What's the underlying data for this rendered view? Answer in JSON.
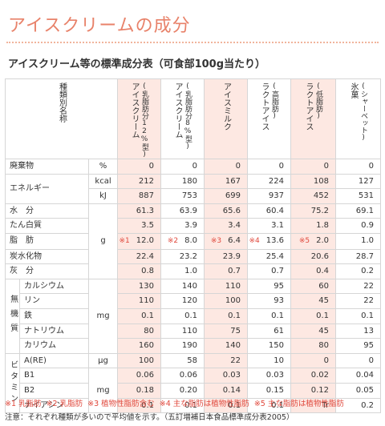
{
  "page_title": "アイスクリームの成分",
  "table_title": "アイスクリーム等の標準成分表（可食部100g当たり）",
  "header": {
    "corner": "種類別名称",
    "columns": [
      {
        "sub": "(乳脂肪分12%型)",
        "name": "アイスクリーム"
      },
      {
        "sub": "(乳脂肪分8%型)",
        "name": "アイスクリーム"
      },
      {
        "sub": "",
        "name": "アイスミルク"
      },
      {
        "sub": "(高脂肪)",
        "name": "ラクトアイス"
      },
      {
        "sub": "(低脂肪)",
        "name": "ラクトアイス"
      },
      {
        "sub": "(シャーベット)",
        "name": "氷菓"
      }
    ]
  },
  "groups": {
    "minerals": "無機質",
    "vitamins": "ビタミン"
  },
  "rows": {
    "haiki": {
      "label": "廃棄物",
      "unit": "%",
      "values": [
        "0",
        "0",
        "0",
        "0",
        "0",
        "0"
      ]
    },
    "energy_kcal": {
      "label": "エネルギー",
      "unit": "kcal",
      "values": [
        "212",
        "180",
        "167",
        "224",
        "108",
        "127"
      ]
    },
    "energy_kj": {
      "unit": "kJ",
      "values": [
        "887",
        "753",
        "699",
        "937",
        "452",
        "531"
      ]
    },
    "water": {
      "label": "水　分",
      "values": [
        "61.3",
        "63.9",
        "65.6",
        "60.4",
        "75.2",
        "69.1"
      ]
    },
    "protein": {
      "label": "たん白質",
      "values": [
        "3.5",
        "3.9",
        "3.4",
        "3.1",
        "1.8",
        "0.9"
      ]
    },
    "fat": {
      "label": "脂　肪",
      "unit": "g",
      "marks": [
        "※1",
        "※2",
        "※3",
        "※4",
        "※5",
        ""
      ],
      "values": [
        "12.0",
        "8.0",
        "6.4",
        "13.6",
        "2.0",
        "1.0"
      ]
    },
    "carb": {
      "label": "炭水化物",
      "values": [
        "22.4",
        "23.2",
        "23.9",
        "25.4",
        "20.6",
        "28.7"
      ]
    },
    "ash": {
      "label": "灰　分",
      "values": [
        "0.8",
        "1.0",
        "0.7",
        "0.7",
        "0.4",
        "0.2"
      ]
    },
    "calcium": {
      "label": "カルシウム",
      "values": [
        "130",
        "140",
        "110",
        "95",
        "60",
        "22"
      ]
    },
    "phosphorus": {
      "label": "リン",
      "values": [
        "110",
        "120",
        "100",
        "93",
        "45",
        "22"
      ]
    },
    "iron": {
      "label": "鉄",
      "unit": "mg",
      "values": [
        "0.1",
        "0.1",
        "0.1",
        "0.1",
        "0.1",
        "0.1"
      ]
    },
    "sodium": {
      "label": "ナトリウム",
      "values": [
        "80",
        "110",
        "75",
        "61",
        "45",
        "13"
      ]
    },
    "potassium": {
      "label": "カリウム",
      "values": [
        "160",
        "190",
        "140",
        "150",
        "80",
        "95"
      ]
    },
    "vita": {
      "label": "A(RE)",
      "unit": "μg",
      "values": [
        "100",
        "58",
        "22",
        "10",
        "0",
        "0"
      ]
    },
    "b1": {
      "label": "B1",
      "values": [
        "0.06",
        "0.06",
        "0.03",
        "0.03",
        "0.02",
        "0.04"
      ]
    },
    "b2": {
      "label": "B2",
      "unit": "mg",
      "values": [
        "0.18",
        "0.20",
        "0.14",
        "0.15",
        "0.12",
        "0.05"
      ]
    },
    "niacin": {
      "label": "ナイアシン",
      "values": [
        "0.1",
        "0.1",
        "0.1",
        "0.1",
        "Tr",
        "0.2"
      ]
    }
  },
  "footnotes": {
    "n1": "※1 乳脂肪",
    "n2": "※2 乳脂肪",
    "n3": "※3 植物性脂肪含む",
    "n4": "※4 主な脂肪は植物性脂肪",
    "n5": "※5 主な脂肪は植物性脂肪",
    "note": "注意：それぞれ種類が多いので平均値を示す。（五訂増補日本食品標準成分表2005）"
  }
}
